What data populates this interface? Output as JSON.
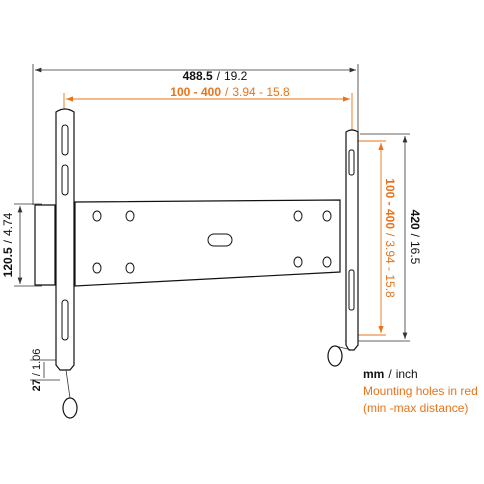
{
  "separator": "/",
  "dimensions": {
    "overall_width": {
      "mm": "488.5",
      "inch": "19.2"
    },
    "hole_width": {
      "mm": "100 - 400",
      "inch": "3.94 - 15.8"
    },
    "overall_height": {
      "mm": "420",
      "inch": "16.5"
    },
    "hole_height": {
      "mm": "100 - 400",
      "inch": "3.94 - 15.8"
    },
    "depth": {
      "mm": "120.5",
      "inch": "4.74"
    },
    "wall_gap": {
      "mm": "27",
      "inch": "1.06"
    }
  },
  "legend": {
    "unit_mm": "mm",
    "unit_inch": "inch",
    "line1": "Mounting holes in red",
    "line2": "(min -max distance)"
  }
}
